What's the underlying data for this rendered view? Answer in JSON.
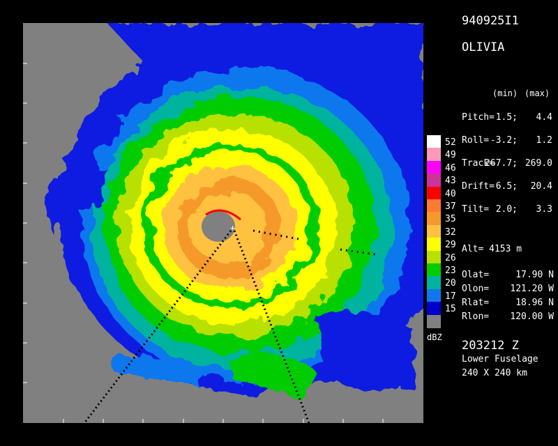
{
  "header": {
    "flight_id": "940925I1",
    "storm_name": "OLIVIA"
  },
  "limits": {
    "min_label": "(min)",
    "max_label": "(max)"
  },
  "attitude": [
    {
      "label": "Pitch=",
      "min": "1.5;",
      "max": "4.4"
    },
    {
      "label": "Roll=",
      "min": "-3.2;",
      "max": "1.2"
    },
    {
      "label": "Track=",
      "min": "267.7;",
      "max": "269.0"
    },
    {
      "label": "Drift=",
      "min": "6.5;",
      "max": "20.4"
    },
    {
      "label": "Tilt=",
      "min": "2.0;",
      "max": "3.3"
    }
  ],
  "altitude": {
    "label": "Alt=",
    "value": "4153 m"
  },
  "positions": [
    {
      "label": "Olat=",
      "value": "17.90 N"
    },
    {
      "label": "Olon=",
      "value": "121.20 W"
    },
    {
      "label": "Rlat=",
      "value": "18.96 N"
    },
    {
      "label": "Rlon=",
      "value": "120.00 W"
    }
  ],
  "color_scale": {
    "unit": "dBZ",
    "levels": [
      {
        "value": "52",
        "color": "#ffffff"
      },
      {
        "value": "49",
        "color": "#ff99bb"
      },
      {
        "value": "46",
        "color": "#ff00ff"
      },
      {
        "value": "43",
        "color": "#cc3399"
      },
      {
        "value": "40",
        "color": "#ff0000"
      },
      {
        "value": "37",
        "color": "#ff7a33"
      },
      {
        "value": "35",
        "color": "#f59a2a"
      },
      {
        "value": "32",
        "color": "#ffc23f"
      },
      {
        "value": "29",
        "color": "#ffff00"
      },
      {
        "value": "26",
        "color": "#b8e000"
      },
      {
        "value": "23",
        "color": "#00cc00"
      },
      {
        "value": "20",
        "color": "#00b39e"
      },
      {
        "value": "17",
        "color": "#1177ee"
      },
      {
        "value": "15",
        "color": "#0000cc"
      },
      {
        "value": "",
        "color": "#808080"
      }
    ]
  },
  "footer": {
    "time": "203212 Z",
    "antenna": "Lower Fuselage",
    "domain_size": "240 X 240 km"
  }
}
